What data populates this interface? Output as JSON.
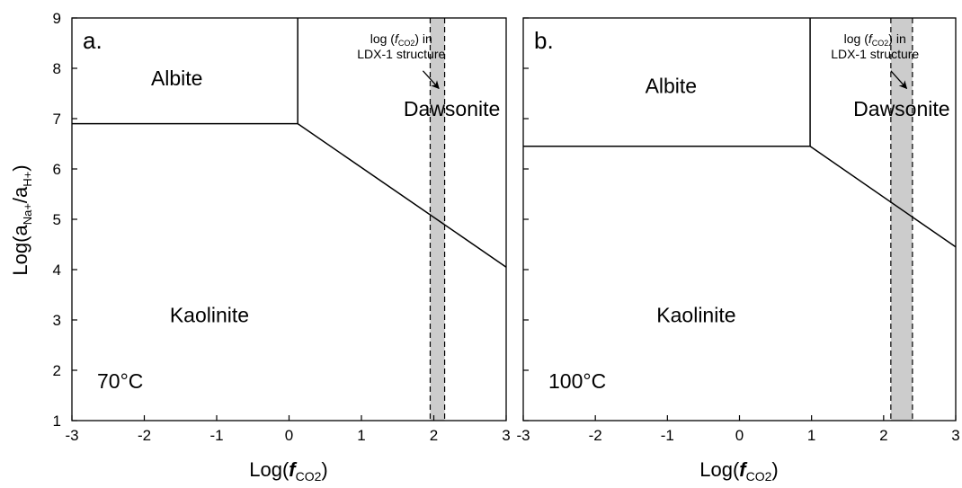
{
  "figure": {
    "ylabel_prefix": "Log(a",
    "ylabel_sub1": "Na+",
    "ylabel_mid": "/a",
    "ylabel_sub2": "H+",
    "ylabel_suffix": ")",
    "xlabel_prefix": "Log(",
    "xlabel_f": "f",
    "xlabel_sub": "CO2",
    "xlabel_suffix": ")"
  },
  "chart_data": [
    {
      "type": "line",
      "panel_label": "a.",
      "temperature": "70°C",
      "xlim": [
        -3,
        3
      ],
      "ylim": [
        1,
        9
      ],
      "xticks": [
        -3,
        -2,
        -1,
        0,
        1,
        2,
        3
      ],
      "yticks": [
        1,
        2,
        3,
        4,
        5,
        6,
        7,
        8,
        9
      ],
      "grid": false,
      "regions": {
        "albite": "Albite",
        "dawsonite": "Dawsonite",
        "kaolinite": "Kaolinite"
      },
      "region_positions": {
        "albite": [
          -1.55,
          7.8
        ],
        "dawsonite": [
          2.25,
          7.2
        ],
        "kaolinite": [
          -1.1,
          3.1
        ]
      },
      "boundaries": {
        "albite_kaolinite": [
          [
            -3,
            6.9
          ],
          [
            0.12,
            6.9
          ]
        ],
        "albite_dawsonite": [
          [
            0.12,
            6.9
          ],
          [
            0.12,
            9
          ]
        ],
        "dawsonite_kaolinite": [
          [
            0.12,
            6.9
          ],
          [
            3,
            4.05
          ]
        ]
      },
      "band": {
        "x_range": [
          1.95,
          2.15
        ]
      },
      "annotation": {
        "line1_prefix": "log (",
        "line1_f": "f",
        "line1_sub": "CO2",
        "line1_suffix": ")  in",
        "line2": "LDX-1 structure"
      },
      "annotation_text_pos": [
        1.55,
        8.5
      ],
      "arrow": {
        "from": [
          1.85,
          7.95
        ],
        "to": [
          2.07,
          7.6
        ]
      }
    },
    {
      "type": "line",
      "panel_label": "b.",
      "temperature": "100°C",
      "xlim": [
        -3,
        3
      ],
      "ylim": [
        1,
        9
      ],
      "xticks": [
        -3,
        -2,
        -1,
        0,
        1,
        2,
        3
      ],
      "yticks": [
        1,
        2,
        3,
        4,
        5,
        6,
        7,
        8,
        9
      ],
      "grid": false,
      "regions": {
        "albite": "Albite",
        "dawsonite": "Dawsonite",
        "kaolinite": "Kaolinite"
      },
      "region_positions": {
        "albite": [
          -0.95,
          7.65
        ],
        "dawsonite": [
          2.25,
          7.2
        ],
        "kaolinite": [
          -0.6,
          3.1
        ]
      },
      "boundaries": {
        "albite_kaolinite": [
          [
            -3,
            6.45
          ],
          [
            0.98,
            6.45
          ]
        ],
        "albite_dawsonite": [
          [
            0.98,
            6.45
          ],
          [
            0.98,
            9
          ]
        ],
        "dawsonite_kaolinite": [
          [
            0.98,
            6.45
          ],
          [
            3,
            4.45
          ]
        ]
      },
      "band": {
        "x_range": [
          2.1,
          2.4
        ]
      },
      "annotation": {
        "line1_prefix": "log (",
        "line1_f": "f",
        "line1_sub": "CO2",
        "line1_suffix": ")  in",
        "line2": "LDX-1 structure"
      },
      "annotation_text_pos": [
        1.88,
        8.5
      ],
      "arrow": {
        "from": [
          2.1,
          7.95
        ],
        "to": [
          2.32,
          7.6
        ]
      }
    }
  ]
}
